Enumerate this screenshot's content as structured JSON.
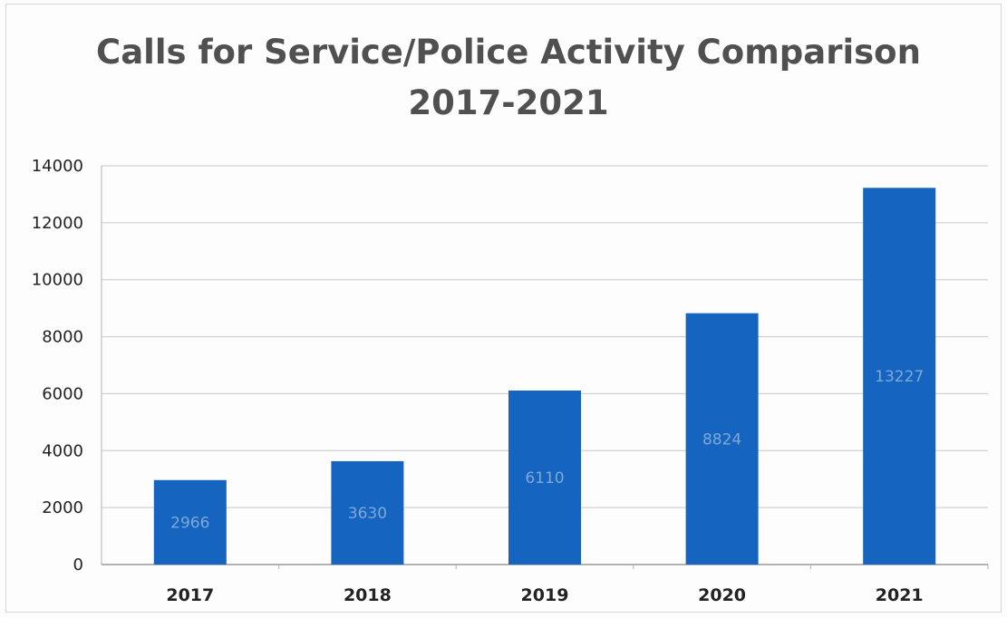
{
  "chart_data": {
    "type": "bar",
    "title_lines": [
      "Calls for Service/Police Activity Comparison",
      "2017-2021"
    ],
    "categories": [
      "2017",
      "2018",
      "2019",
      "2020",
      "2021"
    ],
    "values": [
      2966,
      3630,
      6110,
      8824,
      13227
    ],
    "data_labels": [
      "2966",
      "3630",
      "6110",
      "8824",
      "13227"
    ],
    "yticks": [
      "0",
      "2000",
      "4000",
      "6000",
      "8000",
      "10000",
      "12000",
      "14000"
    ],
    "ylim": [
      0,
      14000
    ],
    "xlabel": "",
    "ylabel": "",
    "grid": true,
    "legend": "none",
    "bar_color": "#1565c0",
    "grid_color": "#c8c8c8",
    "data_label_color": "#7da8d8"
  }
}
